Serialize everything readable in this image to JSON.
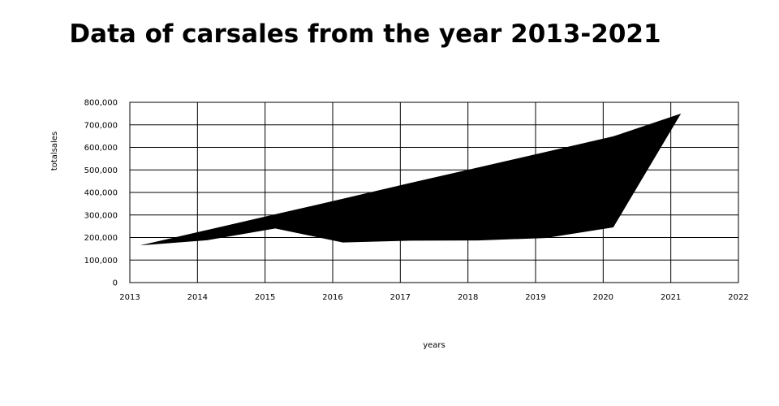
{
  "chart_data": {
    "type": "area",
    "title": "Data of carsales from the year 2013-2021",
    "xlabel": "years",
    "ylabel": "totalsales",
    "xlim": [
      2013,
      2022
    ],
    "ylim": [
      0,
      800000
    ],
    "x_ticks": [
      "2013",
      "2014",
      "2015",
      "2016",
      "2017",
      "2018",
      "2019",
      "2020",
      "2021",
      "2022"
    ],
    "y_ticks": [
      "0",
      "100,000",
      "200,000",
      "300,000",
      "400,000",
      "500,000",
      "600,000",
      "700,000",
      "800,000"
    ],
    "grid": true,
    "fill_color": "#000000",
    "series": [
      {
        "x": [
          2013.15,
          2014.15,
          2015.15,
          2016.15,
          2017.15,
          2018.15,
          2019.15,
          2020.15,
          2021.15
        ],
        "upper": [
          165000,
          234000,
          303000,
          372000,
          442000,
          511000,
          580000,
          649000,
          750000
        ],
        "lower": [
          165000,
          188000,
          240000,
          178000,
          186000,
          187000,
          198000,
          245000,
          750000
        ]
      }
    ]
  }
}
